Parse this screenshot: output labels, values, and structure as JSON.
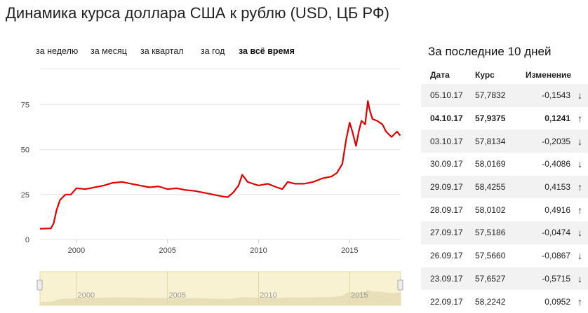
{
  "page": {
    "title": "Динамика курса доллара США к рублю (USD, ЦБ РФ)"
  },
  "tabs": [
    {
      "label": "за неделю",
      "active": false
    },
    {
      "label": "за месяц",
      "active": false
    },
    {
      "label": "за квартал",
      "active": false
    },
    {
      "label": "за год",
      "active": false
    },
    {
      "label": "за всё время",
      "active": true
    }
  ],
  "side": {
    "title": "За последние 10 дней",
    "headers": {
      "date": "Дата",
      "rate": "Курс",
      "change": "Изменение"
    },
    "rows": [
      {
        "date": "05.10.17",
        "rate": "57,7832",
        "change": "-0,1543",
        "dir": "down"
      },
      {
        "date": "04.10.17",
        "rate": "57,9375",
        "change": "0,1241",
        "dir": "up"
      },
      {
        "date": "03.10.17",
        "rate": "57,8134",
        "change": "-0,2035",
        "dir": "down"
      },
      {
        "date": "30.09.17",
        "rate": "58,0169",
        "change": "-0,4086",
        "dir": "down"
      },
      {
        "date": "29.09.17",
        "rate": "58,4255",
        "change": "0,4153",
        "dir": "up"
      },
      {
        "date": "28.09.17",
        "rate": "58,0102",
        "change": "0,4916",
        "dir": "up"
      },
      {
        "date": "27.09.17",
        "rate": "57,5186",
        "change": "-0,0474",
        "dir": "down"
      },
      {
        "date": "26.09.17",
        "rate": "57,5660",
        "change": "-0,0867",
        "dir": "down"
      },
      {
        "date": "23.09.17",
        "rate": "57,6527",
        "change": "-0,5715",
        "dir": "down"
      },
      {
        "date": "22.09.17",
        "rate": "58,2242",
        "change": "0,0952",
        "dir": "up"
      }
    ]
  },
  "colors": {
    "line": "#e00000",
    "up": "#22b822",
    "down": "#e00000",
    "navigator": "#f9f2d2"
  },
  "chart_data": {
    "type": "line",
    "title": "",
    "xlabel": "",
    "ylabel": "",
    "xlim": [
      1998,
      2017.8
    ],
    "ylim": [
      0,
      95
    ],
    "yticks": [
      "0",
      "25",
      "50",
      "75"
    ],
    "xticks": [
      "2000",
      "2005",
      "2010",
      "2015"
    ],
    "grid": true,
    "legend": "none",
    "series": [
      {
        "name": "",
        "x": [
          1998,
          1998.6,
          1998.75,
          1998.9,
          1999.1,
          1999.4,
          1999.7,
          2000,
          2000.5,
          2001,
          2001.5,
          2002,
          2002.5,
          2003,
          2003.5,
          2004,
          2004.5,
          2005,
          2005.5,
          2006,
          2006.5,
          2007,
          2007.5,
          2008,
          2008.3,
          2008.6,
          2008.9,
          2009.1,
          2009.4,
          2009.7,
          2010,
          2010.5,
          2011,
          2011.3,
          2011.6,
          2012,
          2012.5,
          2013,
          2013.5,
          2014,
          2014.3,
          2014.6,
          2014.8,
          2015,
          2015.15,
          2015.35,
          2015.5,
          2015.65,
          2015.85,
          2016,
          2016.1,
          2016.25,
          2016.5,
          2016.8,
          2017,
          2017.3,
          2017.6,
          2017.78
        ],
        "y": [
          6,
          6.2,
          9,
          16,
          22,
          25,
          25,
          28.5,
          28,
          29,
          30,
          31.5,
          32,
          31,
          30,
          29,
          29.5,
          28,
          28.5,
          27.5,
          27,
          26,
          25,
          24,
          23.5,
          26,
          30,
          36,
          32,
          31,
          30,
          31,
          29,
          28,
          32,
          31,
          31,
          32,
          34,
          35,
          37,
          42,
          55,
          65,
          60,
          52,
          60,
          66,
          64,
          77,
          72,
          67,
          66,
          64,
          60,
          57,
          60,
          57.8
        ]
      }
    ],
    "navigator": {
      "xticks": [
        "2000",
        "2005",
        "2010",
        "2015"
      ]
    }
  }
}
